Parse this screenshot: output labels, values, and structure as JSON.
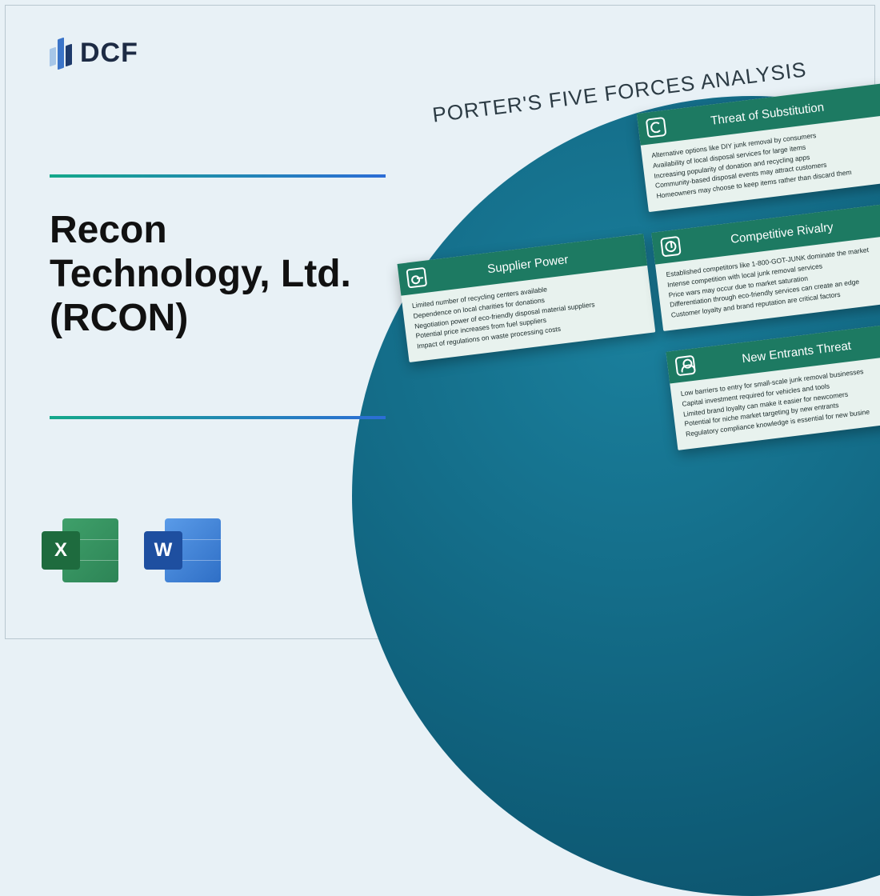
{
  "logo_text": "DCF",
  "heading": "Recon Technology, Ltd. (RCON)",
  "diagram_title": "PORTER'S FIVE FORCES ANALYSIS",
  "excel_letter": "X",
  "word_letter": "W",
  "colors": {
    "page_bg": "#e8f1f6",
    "circle": "#0f5f7a",
    "card_header": "#1d7a62",
    "card_body_bg": "#e8f2ee",
    "divider_start": "#14a88a",
    "divider_end": "#2c6dd6",
    "excel_dark": "#1e6b3e",
    "excel_light": "#3fa06a",
    "word_dark": "#1e4fa0",
    "word_light": "#5a9be8"
  },
  "cards": [
    {
      "title": "Threat of Substitution",
      "icon": "refresh-icon",
      "points": [
        "Alternative options like DIY junk removal by consumers",
        "Availability of local disposal services for large items",
        "Increasing popularity of donation and recycling apps",
        "Community-based disposal events may attract customers",
        "Homeowners may choose to keep items rather than discard them"
      ]
    },
    {
      "title": "Supplier Power",
      "icon": "key-icon",
      "points": [
        "Limited number of recycling centers available",
        "Dependence on local charities for donations",
        "Negotiation power of eco-friendly disposal material suppliers",
        "Potential price increases from fuel suppliers",
        "Impact of regulations on waste processing costs"
      ]
    },
    {
      "title": "Competitive Rivalry",
      "icon": "pie-icon",
      "points": [
        "Established competitors like 1-800-GOT-JUNK dominate the market",
        "Intense competition with local junk removal services",
        "Price wars may occur due to market saturation",
        "Differentiation through eco-friendly services can create an edge",
        "Customer loyalty and brand reputation are critical factors"
      ]
    },
    {
      "title": "New Entrants Threat",
      "icon": "user-icon",
      "points": [
        "Low barriers to entry for small-scale junk removal businesses",
        "Capital investment required for vehicles and tools",
        "Limited brand loyalty can make it easier for newcomers",
        "Potential for niche market targeting by new entrants",
        "Regulatory compliance knowledge is essential for new busine"
      ]
    }
  ]
}
